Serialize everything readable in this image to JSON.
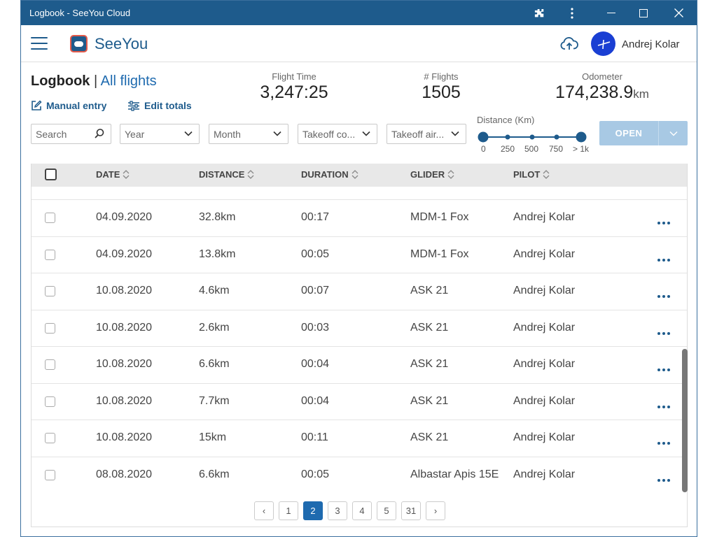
{
  "window": {
    "title": "Logbook - SeeYou Cloud"
  },
  "header": {
    "brand": "SeeYou",
    "user_name": "Andrej Kolar"
  },
  "logbook": {
    "title": "Logbook",
    "separator": "|",
    "filter_link": "All flights",
    "manual_entry": "Manual entry",
    "edit_totals": "Edit totals"
  },
  "stats": {
    "flight_time": {
      "label": "Flight Time",
      "value": "3,247:25"
    },
    "flights": {
      "label": "# Flights",
      "value": "1505"
    },
    "odometer": {
      "label": "Odometer",
      "value": "174,238.9",
      "unit": "km"
    }
  },
  "filters": {
    "search_placeholder": "Search",
    "year": "Year",
    "month": "Month",
    "takeoff_country": "Takeoff co...",
    "takeoff_airport": "Takeoff air..."
  },
  "distance_filter": {
    "label": "Distance (Km)",
    "ticks": [
      "0",
      "250",
      "500",
      "750",
      "> 1k"
    ]
  },
  "open_button": {
    "label": "OPEN"
  },
  "table": {
    "columns": [
      "DATE",
      "DISTANCE",
      "DURATION",
      "GLIDER",
      "PILOT"
    ],
    "rows": [
      {
        "date": "04.09.2020",
        "distance": "32.8km",
        "duration": "00:17",
        "glider": "MDM-1 Fox",
        "pilot": "Andrej Kolar"
      },
      {
        "date": "04.09.2020",
        "distance": "13.8km",
        "duration": "00:05",
        "glider": "MDM-1 Fox",
        "pilot": "Andrej Kolar"
      },
      {
        "date": "10.08.2020",
        "distance": "4.6km",
        "duration": "00:07",
        "glider": "ASK 21",
        "pilot": "Andrej Kolar"
      },
      {
        "date": "10.08.2020",
        "distance": "2.6km",
        "duration": "00:03",
        "glider": "ASK 21",
        "pilot": "Andrej Kolar"
      },
      {
        "date": "10.08.2020",
        "distance": "6.6km",
        "duration": "00:04",
        "glider": "ASK 21",
        "pilot": "Andrej Kolar"
      },
      {
        "date": "10.08.2020",
        "distance": "7.7km",
        "duration": "00:04",
        "glider": "ASK 21",
        "pilot": "Andrej Kolar"
      },
      {
        "date": "10.08.2020",
        "distance": "15km",
        "duration": "00:11",
        "glider": "ASK 21",
        "pilot": "Andrej Kolar"
      },
      {
        "date": "08.08.2020",
        "distance": "6.6km",
        "duration": "00:05",
        "glider": "Albastar Apis 15E",
        "pilot": "Andrej Kolar"
      }
    ]
  },
  "pagination": {
    "prev": "‹",
    "pages": [
      "1",
      "2",
      "3",
      "4",
      "5",
      "31"
    ],
    "current": "2",
    "next": "›"
  },
  "colors": {
    "primary": "#1e5b8c",
    "link": "#1e6aaf",
    "open_button": "#a8c9e4"
  }
}
